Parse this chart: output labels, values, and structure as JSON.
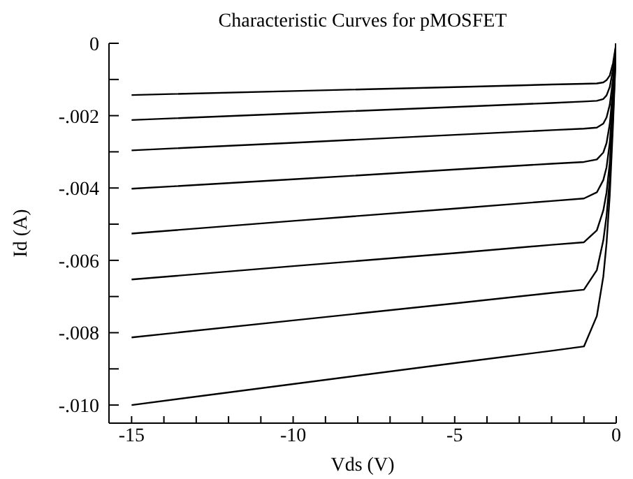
{
  "chart_data": {
    "type": "line",
    "title": "Characteristic Curves for pMOSFET",
    "xlabel": "Vds (V)",
    "ylabel": "Id (A)",
    "x": [
      -15,
      -10,
      -5,
      -2,
      -1,
      -0.6,
      -0.4,
      -0.3,
      -0.2,
      -0.1,
      0
    ],
    "series": [
      {
        "color": "#000000",
        "values": [
          -0.00143,
          -0.00132,
          -0.00121,
          -0.00114,
          -0.00112,
          -0.00111,
          -0.00108,
          -0.00102,
          -0.00089,
          -0.00055,
          0
        ]
      },
      {
        "color": "#000000",
        "values": [
          -0.00212,
          -0.00194,
          -0.00176,
          -0.00165,
          -0.00161,
          -0.00159,
          -0.00154,
          -0.00144,
          -0.00121,
          -0.00072,
          0
        ]
      },
      {
        "color": "#000000",
        "values": [
          -0.00296,
          -0.00275,
          -0.00253,
          -0.0024,
          -0.00236,
          -0.00233,
          -0.00222,
          -0.00205,
          -0.0017,
          -0.00099,
          0
        ]
      },
      {
        "color": "#000000",
        "values": [
          -0.00402,
          -0.00376,
          -0.00349,
          -0.00333,
          -0.00328,
          -0.00321,
          -0.00302,
          -0.00276,
          -0.00223,
          -0.00125,
          0
        ]
      },
      {
        "color": "#000000",
        "values": [
          -0.00526,
          -0.00491,
          -0.00457,
          -0.00436,
          -0.00429,
          -0.00412,
          -0.00378,
          -0.00343,
          -0.00275,
          -0.0015,
          0
        ]
      },
      {
        "color": "#000000",
        "values": [
          -0.00653,
          -0.00616,
          -0.0058,
          -0.00557,
          -0.0055,
          -0.00517,
          -0.00462,
          -0.00413,
          -0.0033,
          -0.00176,
          0
        ]
      },
      {
        "color": "#000000",
        "values": [
          -0.00813,
          -0.00766,
          -0.00719,
          -0.0069,
          -0.00681,
          -0.00627,
          -0.00545,
          -0.00477,
          -0.00375,
          -0.00204,
          0
        ]
      },
      {
        "color": "#000000",
        "values": [
          -0.01,
          -0.00942,
          -0.00884,
          -0.0085,
          -0.00838,
          -0.00754,
          -0.00645,
          -0.00553,
          -0.00419,
          -0.00226,
          0
        ]
      }
    ],
    "xlim": [
      -15.7,
      0
    ],
    "ylim": [
      -0.0105,
      0
    ],
    "xticks": [
      {
        "value": -15,
        "label": "-15"
      },
      {
        "value": -14,
        "label": null
      },
      {
        "value": -13,
        "label": null
      },
      {
        "value": -12,
        "label": null
      },
      {
        "value": -11,
        "label": null
      },
      {
        "value": -10,
        "label": "-10"
      },
      {
        "value": -9,
        "label": null
      },
      {
        "value": -8,
        "label": null
      },
      {
        "value": -7,
        "label": null
      },
      {
        "value": -6,
        "label": null
      },
      {
        "value": -5,
        "label": "-5"
      },
      {
        "value": -4,
        "label": null
      },
      {
        "value": -3,
        "label": null
      },
      {
        "value": -2,
        "label": null
      },
      {
        "value": -1,
        "label": null
      },
      0
    ],
    "yticks": [
      0,
      {
        "value": -0.001,
        "label": null
      },
      {
        "value": -0.002,
        "label": "-.002"
      },
      {
        "value": -0.003,
        "label": null
      },
      {
        "value": -0.004,
        "label": "-.004"
      },
      {
        "value": -0.005,
        "label": null
      },
      {
        "value": -0.006,
        "label": "-.006"
      },
      {
        "value": -0.007,
        "label": null
      },
      {
        "value": -0.008,
        "label": "-.008"
      },
      {
        "value": -0.009,
        "label": null
      },
      {
        "value": -0.01,
        "label": "-.010"
      }
    ],
    "grid": false,
    "legend": false,
    "marker": "none",
    "line_style": "solid"
  }
}
